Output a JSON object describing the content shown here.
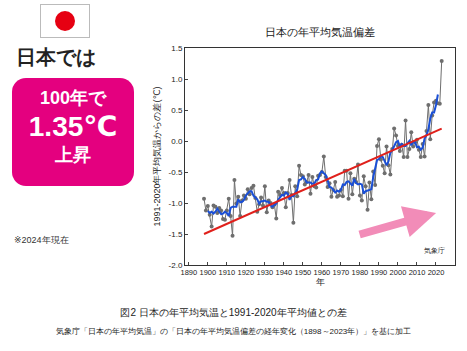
{
  "chart_data": {
    "type": "line",
    "title": "日本の年平均気温偏差",
    "x_label": "年",
    "y_label": "1991-2020年平均気温からの差(℃)",
    "x": [
      1898,
      1899,
      1900,
      1901,
      1902,
      1903,
      1904,
      1905,
      1906,
      1907,
      1908,
      1909,
      1910,
      1911,
      1912,
      1913,
      1914,
      1915,
      1916,
      1917,
      1918,
      1919,
      1920,
      1921,
      1922,
      1923,
      1924,
      1925,
      1926,
      1927,
      1928,
      1929,
      1930,
      1931,
      1932,
      1933,
      1934,
      1935,
      1936,
      1937,
      1938,
      1939,
      1940,
      1941,
      1942,
      1943,
      1944,
      1945,
      1946,
      1947,
      1948,
      1949,
      1950,
      1951,
      1952,
      1953,
      1954,
      1955,
      1956,
      1957,
      1958,
      1959,
      1960,
      1961,
      1962,
      1963,
      1964,
      1965,
      1966,
      1967,
      1968,
      1969,
      1970,
      1971,
      1972,
      1973,
      1974,
      1975,
      1976,
      1977,
      1978,
      1979,
      1980,
      1981,
      1982,
      1983,
      1984,
      1985,
      1986,
      1987,
      1988,
      1989,
      1990,
      1991,
      1992,
      1993,
      1994,
      1995,
      1996,
      1997,
      1998,
      1999,
      2000,
      2001,
      2002,
      2003,
      2004,
      2005,
      2006,
      2007,
      2008,
      2009,
      2010,
      2011,
      2012,
      2013,
      2014,
      2015,
      2016,
      2017,
      2018,
      2019,
      2020,
      2021,
      2022,
      2023
    ],
    "series": [
      {
        "color": "#6e6e6e",
        "marker": "circle",
        "values": [
          -0.93,
          -1.12,
          -1.05,
          -1.19,
          -1.38,
          -1.04,
          -1.06,
          -1.16,
          -1.08,
          -1.12,
          -1.26,
          -1.27,
          -1.12,
          -0.93,
          -1.21,
          -1.53,
          -0.63,
          -1.01,
          -0.9,
          -1.21,
          -0.96,
          -0.88,
          -0.93,
          -0.78,
          -0.86,
          -0.76,
          -0.72,
          -0.92,
          -1.14,
          -1.02,
          -0.91,
          -1.04,
          -0.73,
          -1.15,
          -0.96,
          -1.0,
          -1.07,
          -1.03,
          -1.25,
          -0.82,
          -0.87,
          -0.76,
          -0.84,
          -1.07,
          -0.84,
          -0.63,
          -0.87,
          -1.32,
          -0.73,
          -0.89,
          -0.4,
          -0.55,
          -0.57,
          -0.7,
          -0.66,
          -0.55,
          -0.85,
          -0.58,
          -0.73,
          -0.75,
          -0.56,
          -0.55,
          -0.5,
          -0.25,
          -0.58,
          -0.74,
          -0.68,
          -0.9,
          -0.79,
          -0.66,
          -0.9,
          -0.88,
          -0.79,
          -0.89,
          -0.48,
          -0.48,
          -0.93,
          -0.52,
          -0.86,
          -0.61,
          -0.66,
          -0.38,
          -0.88,
          -0.96,
          -0.57,
          -0.73,
          -1.11,
          -0.67,
          -0.94,
          -0.49,
          -0.71,
          -0.08,
          0.03,
          -0.3,
          -0.4,
          -0.52,
          -0.09,
          -0.39,
          -0.54,
          -0.13,
          0.2,
          0.09,
          -0.08,
          -0.16,
          -0.06,
          -0.26,
          0.33,
          -0.26,
          -0.13,
          0.14,
          -0.09,
          -0.02,
          0.02,
          -0.14,
          -0.26,
          -0.05,
          -0.25,
          0.16,
          0.58,
          0.03,
          0.41,
          0.62,
          0.65,
          0.61,
          0.6,
          1.29
        ]
      },
      {
        "color": "#1a4fd6",
        "values": [
          null,
          null,
          -1.13,
          -1.16,
          -1.14,
          -1.17,
          -1.14,
          -1.09,
          -1.14,
          -1.18,
          -1.17,
          -1.14,
          -1.16,
          -1.21,
          -1.08,
          -1.06,
          -1.06,
          -1.06,
          -0.94,
          -0.99,
          -0.98,
          -0.95,
          -0.88,
          -0.84,
          -0.81,
          -0.81,
          -0.88,
          -0.91,
          -0.94,
          -1.01,
          -0.97,
          -0.97,
          -0.96,
          -0.98,
          -0.98,
          -1.04,
          -1.06,
          -1.03,
          -1.01,
          -0.95,
          -0.91,
          -0.87,
          -0.88,
          -0.83,
          -0.85,
          -0.95,
          -0.88,
          -0.89,
          -0.84,
          -0.78,
          -0.63,
          -0.62,
          -0.58,
          -0.61,
          -0.67,
          -0.67,
          -0.67,
          -0.69,
          -0.69,
          -0.63,
          -0.62,
          -0.52,
          -0.49,
          -0.52,
          -0.55,
          -0.63,
          -0.74,
          -0.75,
          -0.79,
          -0.83,
          -0.8,
          -0.82,
          -0.79,
          -0.7,
          -0.71,
          -0.66,
          -0.65,
          -0.68,
          -0.72,
          -0.61,
          -0.68,
          -0.7,
          -0.69,
          -0.7,
          -0.85,
          -0.81,
          -0.8,
          -0.79,
          -0.78,
          -0.58,
          -0.44,
          -0.31,
          -0.29,
          -0.25,
          -0.26,
          -0.34,
          -0.39,
          -0.33,
          -0.19,
          -0.15,
          -0.09,
          -0.02,
          0.0,
          -0.09,
          -0.05,
          -0.08,
          -0.08,
          -0.04,
          0.0,
          -0.07,
          -0.02,
          -0.02,
          -0.1,
          -0.09,
          -0.14,
          -0.11,
          0.04,
          0.09,
          0.19,
          0.36,
          0.46,
          0.46,
          0.58,
          0.75,
          null,
          null
        ]
      },
      {
        "color": "#e0201b",
        "x": [
          1898,
          2023
        ],
        "values": [
          -1.5,
          0.2
        ]
      }
    ],
    "xlim": [
      1888,
      2030
    ],
    "xticks": [
      1890,
      1900,
      1910,
      1920,
      1930,
      1940,
      1950,
      1960,
      1970,
      1980,
      1990,
      2000,
      2010,
      2020
    ],
    "ylim": [
      -2,
      1.5
    ],
    "yticks": [
      {
        "value": -2,
        "label": "-2.0"
      },
      -1.5,
      {
        "value": -1,
        "label": "-1.0"
      },
      -0.5,
      {
        "value": 0,
        "label": "0.0"
      },
      0.5,
      {
        "value": 1,
        "label": "1.0"
      },
      1.5
    ],
    "grid": false,
    "annotations": [
      {
        "text": "気象庁"
      }
    ]
  },
  "flag": "日本",
  "header": "日本では",
  "badge": [
    "100年で",
    "1.35℃",
    "上昇"
  ],
  "note": "※2024年現在",
  "caption": "図2 日本の年平均気温と1991-2020年平均値との差",
  "source": "気象庁「日本の年平均気温」の「日本の年平均気温偏差の経年変化（1898～2023年）」を基に加工"
}
